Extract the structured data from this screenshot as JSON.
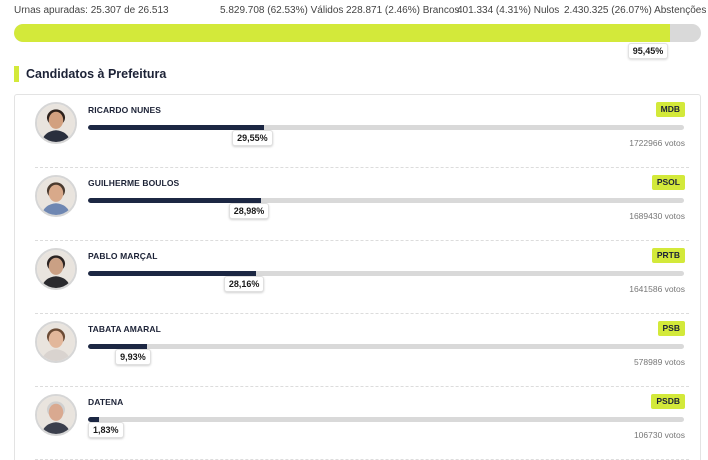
{
  "summary": {
    "urnas": "Urnas apuradas: 25.307 de 26.513",
    "validos": "5.829.708 (62.53%) Válidos",
    "brancos": "228.871 (2.46%) Brancos",
    "nulos": "401.334 (4.31%) Nulos",
    "abstencoes": "2.430.325 (26.07%) Abstenções",
    "progress_label": "95,45%",
    "progress_value": 95.45
  },
  "section": {
    "title": "Candidatos à Prefeitura"
  },
  "colors": {
    "accent": "#d3e93a",
    "bar_fill": "#1c2743",
    "track": "#d9d9d9"
  },
  "candidates": [
    {
      "name": "RICARDO NUNES",
      "party": "MDB",
      "pct_label": "29,55%",
      "pct": 29.55,
      "votes": "1722966 votos",
      "avatar": "ricardo-nunes-avatar"
    },
    {
      "name": "GUILHERME BOULOS",
      "party": "PSOL",
      "pct_label": "28,98%",
      "pct": 28.98,
      "votes": "1689430 votos",
      "avatar": "guilherme-boulos-avatar"
    },
    {
      "name": "PABLO MARÇAL",
      "party": "PRTB",
      "pct_label": "28,16%",
      "pct": 28.16,
      "votes": "1641586 votos",
      "avatar": "pablo-marcal-avatar"
    },
    {
      "name": "TABATA AMARAL",
      "party": "PSB",
      "pct_label": "9,93%",
      "pct": 9.93,
      "votes": "578989 votos",
      "avatar": "tabata-amaral-avatar"
    },
    {
      "name": "DATENA",
      "party": "PSDB",
      "pct_label": "1,83%",
      "pct": 1.83,
      "votes": "106730 votos",
      "avatar": "datena-avatar"
    }
  ]
}
